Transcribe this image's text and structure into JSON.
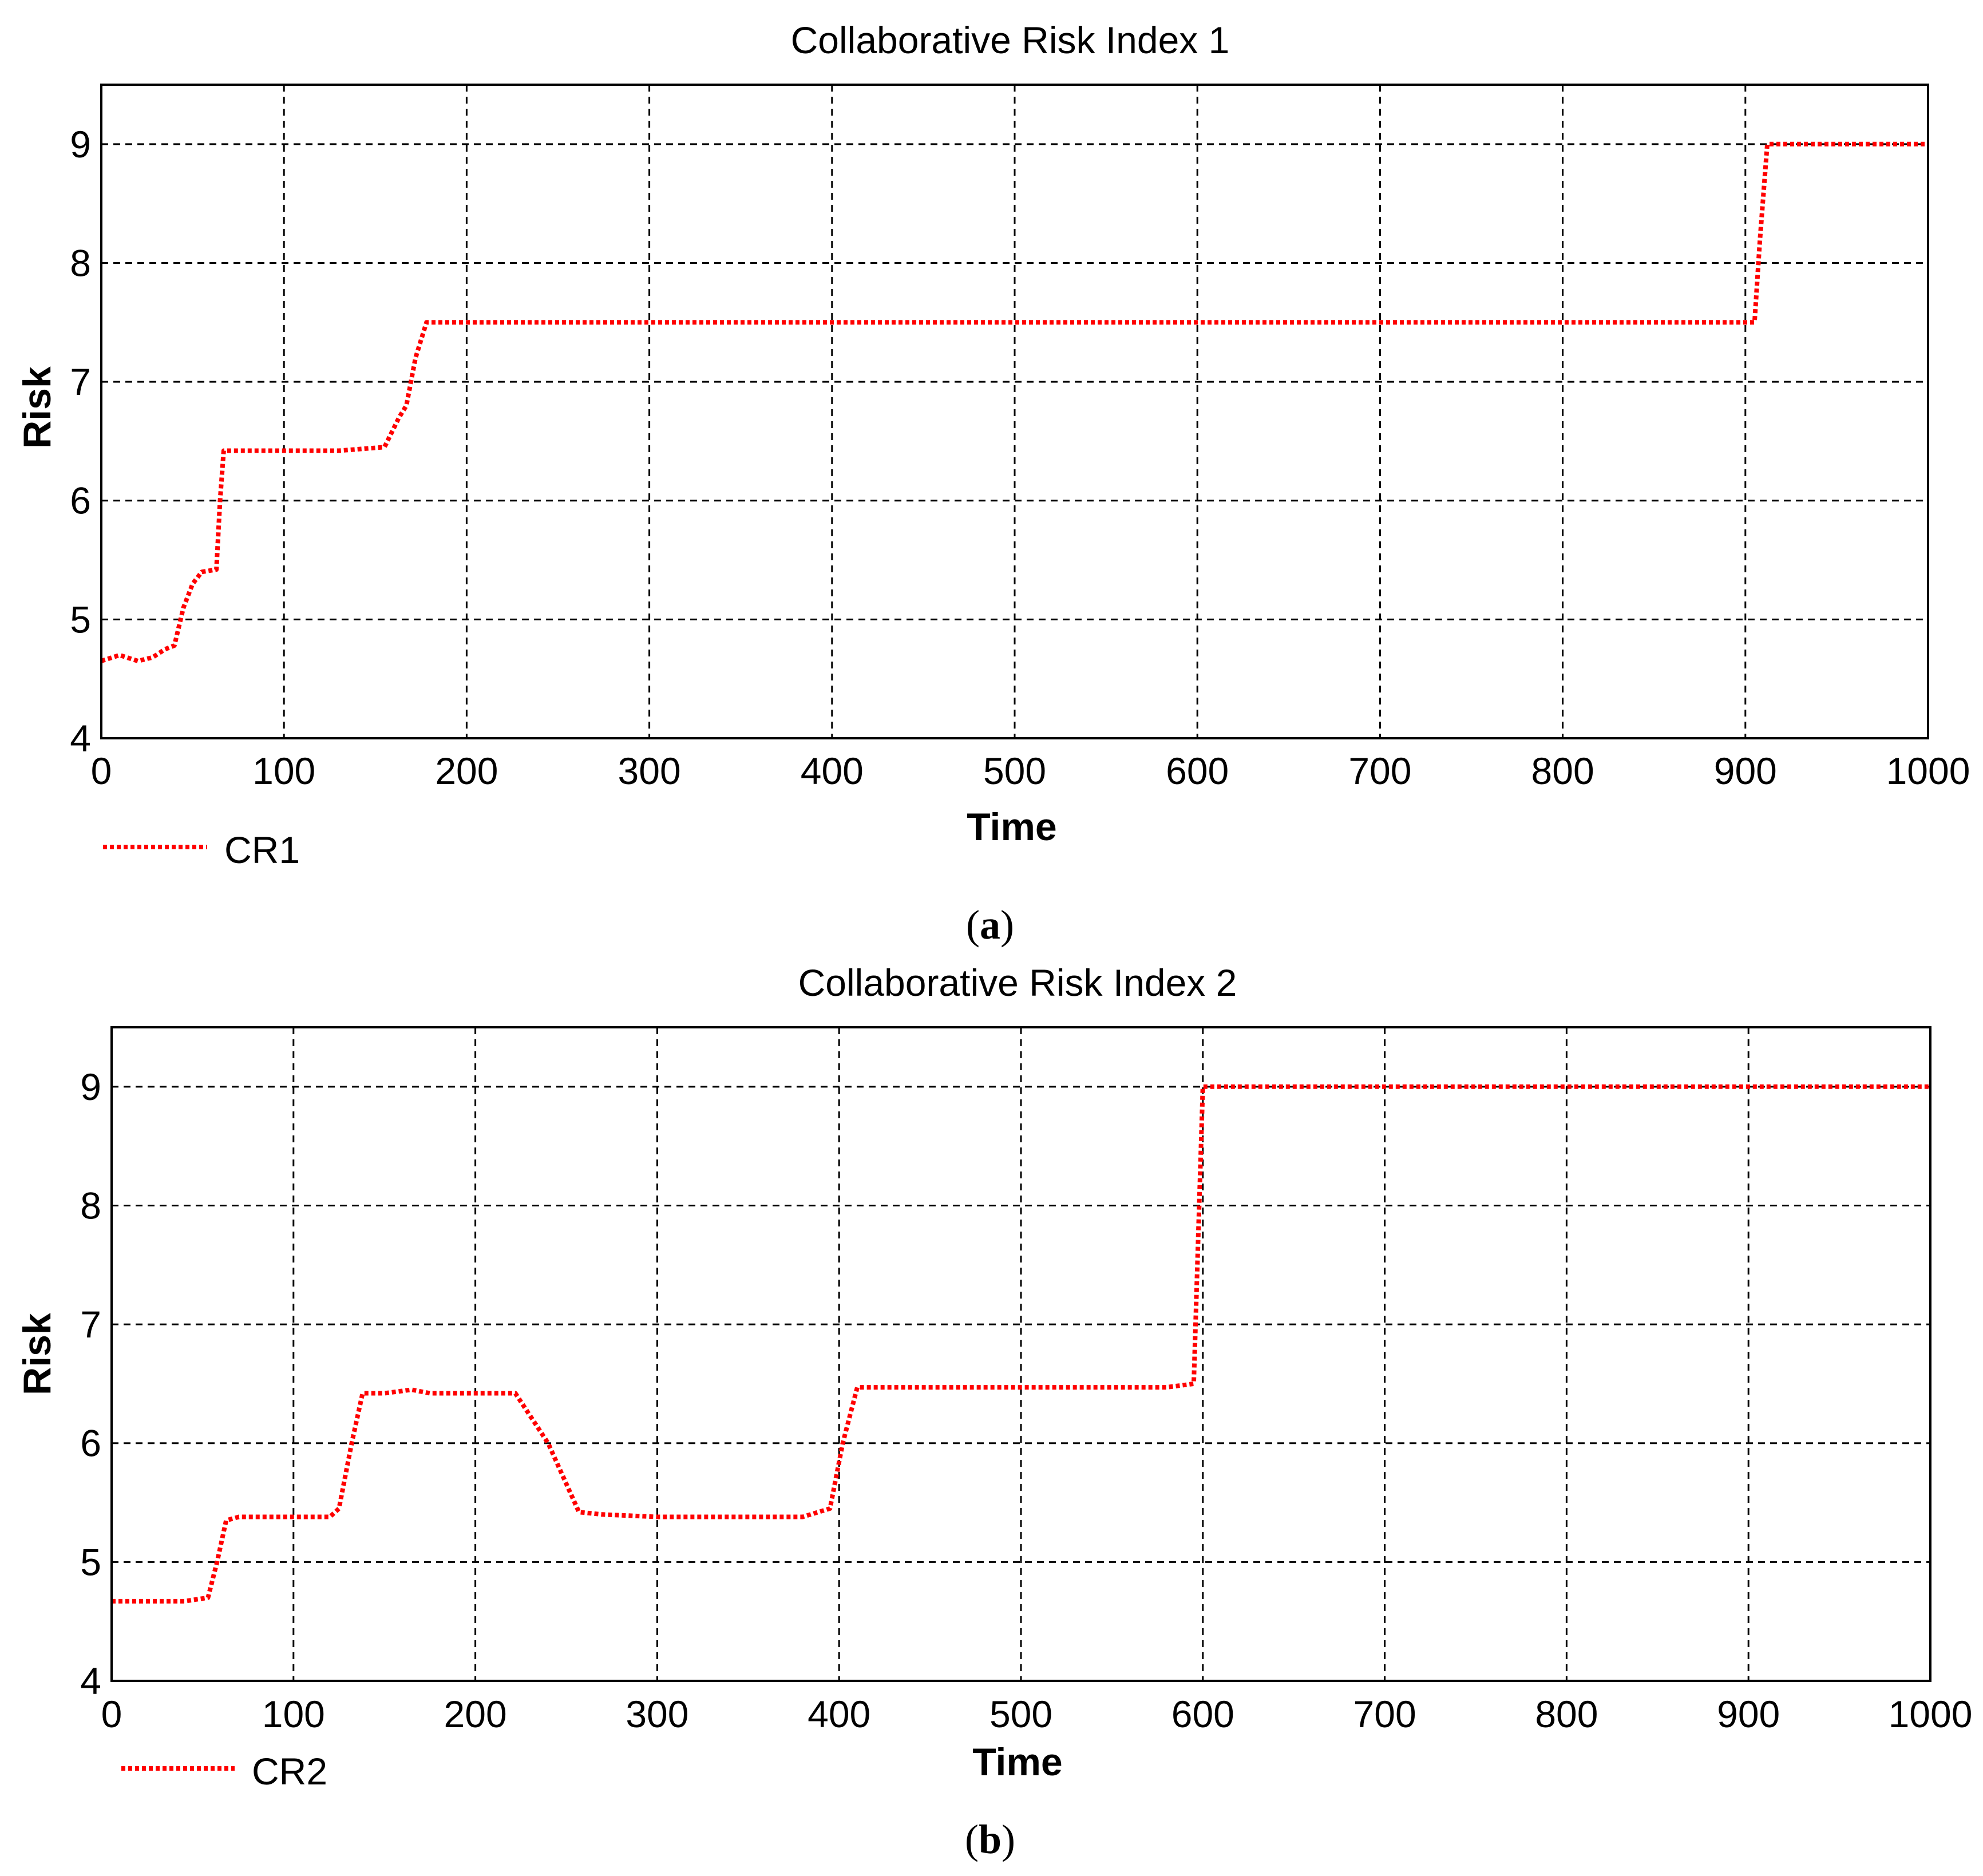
{
  "chart_data": [
    {
      "type": "line",
      "title": "Collaborative Risk Index 1",
      "xlabel": "Time",
      "ylabel": "Risk",
      "xlim": [
        0,
        1000
      ],
      "ylim": [
        4,
        9.5
      ],
      "xticks": [
        0,
        100,
        200,
        300,
        400,
        500,
        600,
        700,
        800,
        900,
        1000
      ],
      "yticks": [
        4,
        5,
        6,
        7,
        8,
        9
      ],
      "grid": true,
      "legend_position": "bottom-left",
      "caption_letter": "a",
      "series": [
        {
          "name": "CR1",
          "color": "#ff0000",
          "style": "dotted",
          "x": [
            0,
            10,
            20,
            28,
            35,
            40,
            45,
            50,
            55,
            63,
            65,
            67,
            75,
            100,
            130,
            155,
            163,
            167,
            172,
            178,
            200,
            300,
            400,
            500,
            600,
            700,
            800,
            905,
            908,
            912,
            950,
            1000
          ],
          "y": [
            4.65,
            4.7,
            4.65,
            4.68,
            4.75,
            4.78,
            5.1,
            5.3,
            5.4,
            5.42,
            6.0,
            6.42,
            6.42,
            6.42,
            6.42,
            6.45,
            6.7,
            6.8,
            7.2,
            7.5,
            7.5,
            7.5,
            7.5,
            7.5,
            7.5,
            7.5,
            7.5,
            7.5,
            8.2,
            9.0,
            9.0,
            9.0
          ]
        }
      ]
    },
    {
      "type": "line",
      "title": "Collaborative Risk Index 2",
      "xlabel": "Time",
      "ylabel": "Risk",
      "xlim": [
        0,
        1000
      ],
      "ylim": [
        4,
        9.5
      ],
      "xticks": [
        0,
        100,
        200,
        300,
        400,
        500,
        600,
        700,
        800,
        900,
        1000
      ],
      "yticks": [
        4,
        5,
        6,
        7,
        8,
        9
      ],
      "grid": true,
      "legend_position": "bottom-left",
      "caption_letter": "b",
      "series": [
        {
          "name": "CR2",
          "color": "#ff0000",
          "style": "dotted",
          "x": [
            0,
            20,
            40,
            53,
            58,
            63,
            70,
            100,
            120,
            125,
            132,
            138,
            150,
            165,
            175,
            200,
            222,
            240,
            257,
            270,
            300,
            350,
            380,
            395,
            402,
            410,
            420,
            500,
            580,
            595,
            598,
            600,
            700,
            800,
            900,
            1000
          ],
          "y": [
            4.67,
            4.67,
            4.67,
            4.7,
            5.0,
            5.35,
            5.38,
            5.38,
            5.38,
            5.45,
            6.0,
            6.42,
            6.42,
            6.45,
            6.42,
            6.42,
            6.42,
            6.0,
            5.42,
            5.4,
            5.38,
            5.38,
            5.38,
            5.45,
            6.0,
            6.47,
            6.47,
            6.47,
            6.47,
            6.5,
            8.0,
            9.0,
            9.0,
            9.0,
            9.0,
            9.0
          ]
        }
      ]
    }
  ]
}
